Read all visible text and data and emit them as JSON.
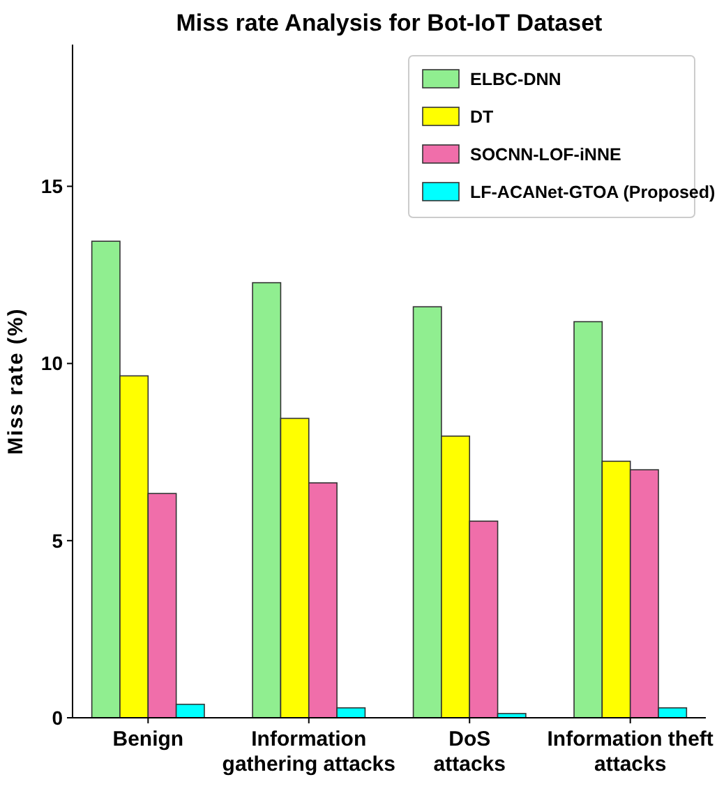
{
  "chart_data": {
    "type": "bar",
    "title": "Miss rate Analysis for Bot-IoT Dataset",
    "ylabel": "Miss rate (%)",
    "categories": [
      "Benign",
      "Information\ngathering attacks",
      "DoS\nattacks",
      "Information theft\nattacks"
    ],
    "series": [
      {
        "name": "ELBC-DNN",
        "color": "#90ee90",
        "values": [
          13.45,
          12.28,
          11.6,
          11.18
        ]
      },
      {
        "name": "DT",
        "color": "#ffff00",
        "values": [
          9.65,
          8.45,
          7.95,
          7.24
        ]
      },
      {
        "name": "SOCNN-LOF-iNNE",
        "color": "#f06eaa",
        "values": [
          6.33,
          6.63,
          5.55,
          7.0
        ]
      },
      {
        "name": "LF-ACANet-GTOA (Proposed)",
        "color": "#00ffff",
        "values": [
          0.38,
          0.28,
          0.12,
          0.28
        ]
      }
    ],
    "ylim": [
      0,
      19
    ],
    "yticks": [
      0,
      5,
      10,
      15
    ],
    "grid": false,
    "legend": "top right"
  }
}
